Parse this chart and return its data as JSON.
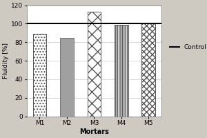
{
  "categories": [
    "M1",
    "M2",
    "M3",
    "M4",
    "M5"
  ],
  "values": [
    89,
    85,
    113,
    99,
    101
  ],
  "control_line": 100,
  "ylabel": "Fluidity [%]",
  "xlabel": "Mortars",
  "ylim": [
    0,
    120
  ],
  "yticks": [
    0,
    20,
    40,
    60,
    80,
    100,
    120
  ],
  "bar_facecolors": [
    "white",
    "#a0a0a0",
    "white",
    "white",
    "white"
  ],
  "bar_edgecolors": [
    "#555555",
    "#777777",
    "#555555",
    "#555555",
    "#555555"
  ],
  "background_color": "#cec9c1",
  "plot_background": "#ffffff",
  "legend_label": "Control",
  "bar_width": 0.5,
  "figsize": [
    3.0,
    2.0
  ],
  "dpi": 100
}
